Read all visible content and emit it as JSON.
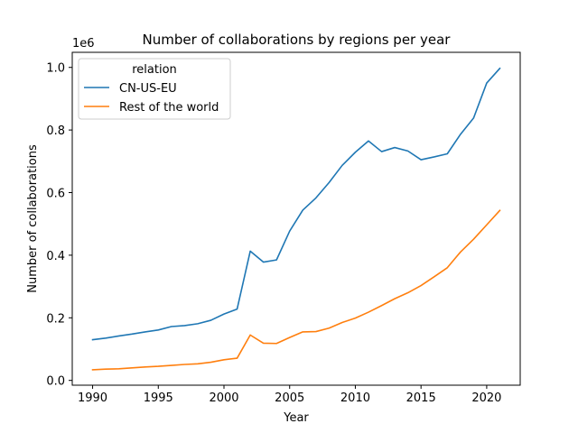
{
  "chart_data": {
    "type": "line",
    "title": "Number of collaborations by regions per year",
    "xlabel": "Year",
    "ylabel": "Number of collaborations",
    "y_offset_label": "1e6",
    "xlim": [
      1988.45,
      2022.55
    ],
    "ylim": [
      -0.0153,
      1.0482
    ],
    "x_ticks": [
      1990,
      1995,
      2000,
      2005,
      2010,
      2015,
      2020
    ],
    "x_tick_labels": [
      "1990",
      "1995",
      "2000",
      "2005",
      "2010",
      "2015",
      "2020"
    ],
    "y_ticks": [
      0.0,
      0.2,
      0.4,
      0.6,
      0.8,
      1.0
    ],
    "y_tick_labels": [
      "0.0",
      "0.2",
      "0.4",
      "0.6",
      "0.8",
      "1.0"
    ],
    "grid": false,
    "legend": {
      "title": "relation",
      "position": "top-left"
    },
    "x": [
      1990,
      1991,
      1992,
      1993,
      1994,
      1995,
      1996,
      1997,
      1998,
      1999,
      2000,
      2001,
      2002,
      2003,
      2004,
      2005,
      2006,
      2007,
      2008,
      2009,
      2010,
      2011,
      2012,
      2013,
      2014,
      2015,
      2016,
      2017,
      2018,
      2019,
      2020,
      2021
    ],
    "series": [
      {
        "name": "CN-US-EU",
        "color": "#1f77b4",
        "values": [
          0.13,
          0.135,
          0.142,
          0.148,
          0.155,
          0.161,
          0.172,
          0.175,
          0.181,
          0.192,
          0.212,
          0.228,
          0.413,
          0.378,
          0.385,
          0.477,
          0.544,
          0.583,
          0.632,
          0.687,
          0.729,
          0.765,
          0.731,
          0.744,
          0.733,
          0.705,
          0.714,
          0.724,
          0.786,
          0.838,
          0.95,
          0.997
        ]
      },
      {
        "name": "Rest of the world",
        "color": "#ff7f0e",
        "values": [
          0.034,
          0.036,
          0.037,
          0.04,
          0.043,
          0.045,
          0.048,
          0.051,
          0.053,
          0.058,
          0.066,
          0.071,
          0.145,
          0.119,
          0.118,
          0.137,
          0.155,
          0.156,
          0.167,
          0.185,
          0.199,
          0.218,
          0.239,
          0.261,
          0.28,
          0.303,
          0.331,
          0.36,
          0.41,
          0.451,
          0.497,
          0.543
        ]
      }
    ]
  }
}
